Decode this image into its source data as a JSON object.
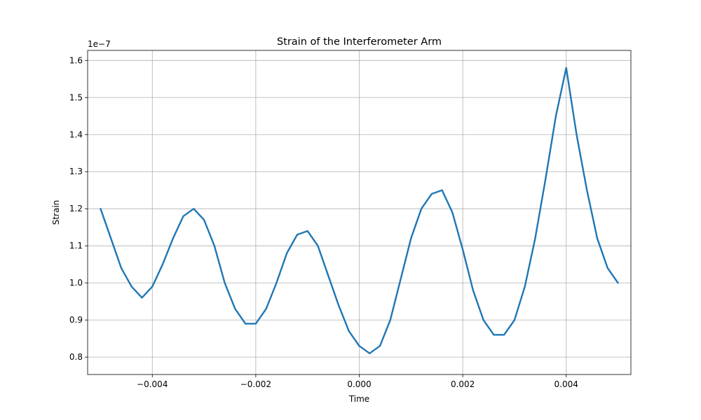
{
  "chart_data": {
    "type": "line",
    "title": "Strain of the Interferometer Arm",
    "xlabel": "Time",
    "ylabel": "Strain",
    "y_offset_label": "1e−7",
    "xlim": [
      -0.00525,
      0.00525
    ],
    "ylim": [
      0.753,
      1.627
    ],
    "grid": true,
    "x_ticks": [
      -0.004,
      -0.002,
      0.0,
      0.002,
      0.004
    ],
    "x_tick_labels": [
      "−0.004",
      "−0.002",
      "0.000",
      "0.002",
      "0.004"
    ],
    "y_ticks": [
      0.8,
      0.9,
      1.0,
      1.1,
      1.2,
      1.3,
      1.4,
      1.5,
      1.6
    ],
    "y_tick_labels": [
      "0.8",
      "0.9",
      "1.0",
      "1.1",
      "1.2",
      "1.3",
      "1.4",
      "1.5",
      "1.6"
    ],
    "series": [
      {
        "color": "#1f77b4",
        "x": [
          -0.005,
          -0.0048,
          -0.0046,
          -0.0044,
          -0.0042,
          -0.004,
          -0.0038,
          -0.0036,
          -0.0034,
          -0.0032,
          -0.003,
          -0.0028,
          -0.0026,
          -0.0024,
          -0.0022,
          -0.002,
          -0.0018,
          -0.0016,
          -0.0014,
          -0.0012,
          -0.001,
          -0.0008,
          -0.0006,
          -0.0004,
          -0.0002,
          0.0,
          0.0002,
          0.0004,
          0.0006,
          0.0008,
          0.001,
          0.0012,
          0.0014,
          0.0016,
          0.0018,
          0.002,
          0.0022,
          0.0024,
          0.0026,
          0.0028,
          0.003,
          0.0032,
          0.0034,
          0.0036,
          0.0038,
          0.004,
          0.0042,
          0.0044,
          0.0046,
          0.0048,
          0.005
        ],
        "y": [
          1.2,
          1.12,
          1.04,
          0.99,
          0.96,
          0.99,
          1.05,
          1.12,
          1.18,
          1.2,
          1.17,
          1.1,
          1.0,
          0.93,
          0.89,
          0.89,
          0.93,
          1.0,
          1.08,
          1.13,
          1.14,
          1.1,
          1.02,
          0.94,
          0.87,
          0.83,
          0.81,
          0.83,
          0.9,
          1.01,
          1.12,
          1.2,
          1.24,
          1.25,
          1.19,
          1.09,
          0.98,
          0.9,
          0.86,
          0.86,
          0.9,
          0.99,
          1.12,
          1.28,
          1.45,
          1.58,
          1.4,
          1.25,
          1.12,
          1.04,
          1.0
        ]
      }
    ]
  }
}
